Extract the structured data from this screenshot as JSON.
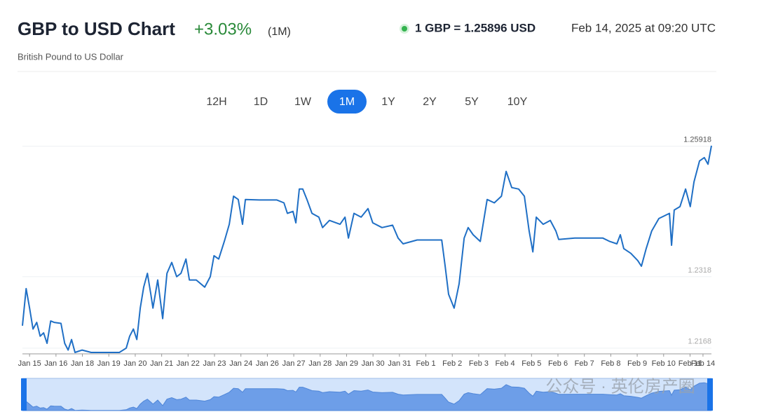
{
  "header": {
    "title": "GBP to USD Chart",
    "change": "+3.03%",
    "period": "(1M)",
    "subtitle": "British Pound to US Dollar",
    "rate": "1 GBP = 1.25896 USD",
    "timestamp": "Feb 14, 2025 at 09:20 UTC"
  },
  "range_buttons": {
    "items": [
      "12H",
      "1D",
      "1W",
      "1M",
      "1Y",
      "2Y",
      "5Y",
      "10Y"
    ],
    "active": "1M"
  },
  "watermark": "公众号 · 英伦房产圈",
  "chart_data": {
    "type": "line",
    "x": [
      -0.27,
      -0.13,
      0,
      0.13,
      0.27,
      0.4,
      0.53,
      0.66,
      0.8,
      0.93,
      1.19,
      1.33,
      1.46,
      1.59,
      1.72,
      1.99,
      2.33,
      2.86,
      3.4,
      3.66,
      3.79,
      3.93,
      4.06,
      4.19,
      4.32,
      4.46,
      4.59,
      4.67,
      4.85,
      5.04,
      5.2,
      5.38,
      5.57,
      5.73,
      5.92,
      6.05,
      6.31,
      6.63,
      6.84,
      6.98,
      7.16,
      7.37,
      7.56,
      7.72,
      7.9,
      8.06,
      8.17,
      8.7,
      9.36,
      9.63,
      9.76,
      9.97,
      10.08,
      10.21,
      10.34,
      10.5,
      10.69,
      10.95,
      11.09,
      11.35,
      11.75,
      11.94,
      12.07,
      12.28,
      12.55,
      12.81,
      12.99,
      13.34,
      13.74,
      13.95,
      14.14,
      14.67,
      15.6,
      15.73,
      15.86,
      16.07,
      16.26,
      16.45,
      16.6,
      16.79,
      17.06,
      17.32,
      17.59,
      17.86,
      18.04,
      18.25,
      18.51,
      18.73,
      18.91,
      19.05,
      19.18,
      19.44,
      19.71,
      19.92,
      20.03,
      20.64,
      21.7,
      21.96,
      22.23,
      22.36,
      22.49,
      22.76,
      23.02,
      23.16,
      23.34,
      23.55,
      23.82,
      24.22,
      24.3,
      24.4,
      24.62,
      24.83,
      25.01,
      25.15,
      25.36,
      25.54,
      25.68,
      25.81
    ],
    "series": [
      {
        "name": "GBP/USD",
        "color": "#1f6fc5",
        "values": [
          1.2215,
          1.2293,
          1.2252,
          1.2208,
          1.2222,
          1.2193,
          1.22,
          1.2178,
          1.2225,
          1.2222,
          1.222,
          1.2178,
          1.2164,
          1.2186,
          1.2159,
          1.2164,
          1.2159,
          1.2159,
          1.2159,
          1.2168,
          1.2193,
          1.2208,
          1.2186,
          1.2252,
          1.2296,
          1.2325,
          1.2281,
          1.2252,
          1.2311,
          1.223,
          1.2325,
          1.2348,
          1.2318,
          1.2325,
          1.2355,
          1.2311,
          1.2311,
          1.2296,
          1.2318,
          1.2362,
          1.2355,
          1.2392,
          1.2428,
          1.2487,
          1.248,
          1.2428,
          1.248,
          1.2479,
          1.2479,
          1.2473,
          1.2451,
          1.2455,
          1.2431,
          1.2502,
          1.2502,
          1.248,
          1.2451,
          1.2443,
          1.2421,
          1.2436,
          1.2428,
          1.2443,
          1.2399,
          1.2451,
          1.2443,
          1.2461,
          1.2431,
          1.2421,
          1.2426,
          1.2399,
          1.2387,
          1.2395,
          1.2395,
          1.234,
          1.2281,
          1.2252,
          1.2303,
          1.2399,
          1.2421,
          1.2406,
          1.2392,
          1.248,
          1.2473,
          1.2487,
          1.2539,
          1.2505,
          1.2502,
          1.2487,
          1.2414,
          1.237,
          1.2443,
          1.2428,
          1.2436,
          1.2414,
          1.2396,
          1.2399,
          1.2399,
          1.2392,
          1.2387,
          1.2406,
          1.2377,
          1.2367,
          1.2352,
          1.234,
          1.2377,
          1.2414,
          1.244,
          1.2451,
          1.2384,
          1.2458,
          1.2465,
          1.2502,
          1.2465,
          1.2517,
          1.2561,
          1.2568,
          1.2554,
          1.2593
        ]
      }
    ],
    "xlim": [
      -0.27,
      25.81
    ],
    "xticks": [
      {
        "value": 0,
        "label": "Jan 15"
      },
      {
        "value": 1,
        "label": "Jan 16"
      },
      {
        "value": 2,
        "label": "Jan 18"
      },
      {
        "value": 3,
        "label": "Jan 19"
      },
      {
        "value": 4,
        "label": "Jan 20"
      },
      {
        "value": 5,
        "label": "Jan 21"
      },
      {
        "value": 6,
        "label": "Jan 22"
      },
      {
        "value": 7,
        "label": "Jan 23"
      },
      {
        "value": 8,
        "label": "Jan 24"
      },
      {
        "value": 9,
        "label": "Jan 26"
      },
      {
        "value": 10,
        "label": "Jan 27"
      },
      {
        "value": 11,
        "label": "Jan 28"
      },
      {
        "value": 12,
        "label": "Jan 29"
      },
      {
        "value": 13,
        "label": "Jan 30"
      },
      {
        "value": 14,
        "label": "Jan 31"
      },
      {
        "value": 15,
        "label": "Feb 1"
      },
      {
        "value": 16,
        "label": "Feb 2"
      },
      {
        "value": 17,
        "label": "Feb 3"
      },
      {
        "value": 18,
        "label": "Feb 4"
      },
      {
        "value": 19,
        "label": "Feb 5"
      },
      {
        "value": 20,
        "label": "Feb 6"
      },
      {
        "value": 21,
        "label": "Feb 7"
      },
      {
        "value": 22,
        "label": "Feb 8"
      },
      {
        "value": 23,
        "label": "Feb 9"
      },
      {
        "value": 24,
        "label": "Feb 10"
      },
      {
        "value": 25,
        "label": "Feb 11"
      },
      {
        "value": 25.49,
        "label": "Feb 14"
      }
    ],
    "ylim": [
      1.2156,
      1.2612
    ],
    "yticks": [
      1.25918,
      1.2318,
      1.2168
    ],
    "grid": true
  }
}
